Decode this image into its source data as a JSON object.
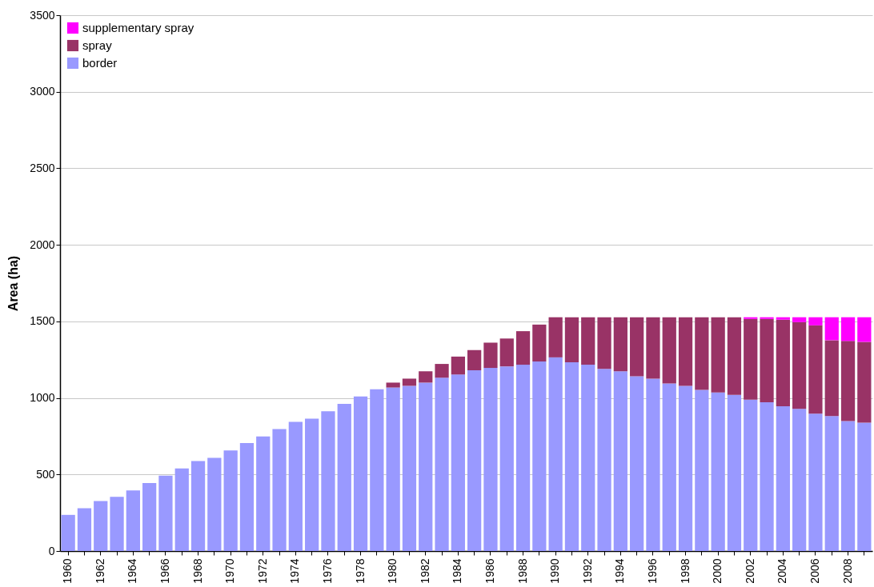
{
  "chart_data": {
    "type": "bar",
    "stacked": true,
    "ylabel": "Area (ha)",
    "categories": [
      "1960",
      null,
      "1962",
      null,
      "1964",
      null,
      "1966",
      null,
      "1968",
      null,
      "1970",
      null,
      "1972",
      null,
      "1974",
      null,
      "1976",
      null,
      "1978",
      null,
      "1980",
      null,
      "1982",
      null,
      "1984",
      null,
      "1986",
      null,
      "1988",
      null,
      "1990",
      null,
      "1992",
      null,
      "1994",
      null,
      "1996",
      null,
      "1998",
      null,
      "2000",
      null,
      "2002",
      null,
      "2004",
      null,
      "2006",
      null,
      "2008",
      null
    ],
    "series": [
      {
        "name": "border",
        "color": "#9999ff",
        "values": [
          236,
          279,
          327,
          354,
          396,
          444,
          492,
          540,
          588,
          609,
          657,
          705,
          748,
          796,
          844,
          865,
          913,
          961,
          1009,
          1057,
          1068,
          1079,
          1100,
          1132,
          1153,
          1180,
          1196,
          1206,
          1217,
          1238,
          1265,
          1233,
          1217,
          1190,
          1174,
          1142,
          1126,
          1094,
          1079,
          1052,
          1036,
          1020,
          988,
          972,
          945,
          929,
          897,
          881,
          849,
          838
        ]
      },
      {
        "name": "spray",
        "color": "#993366",
        "values": [
          0,
          0,
          0,
          0,
          0,
          0,
          0,
          0,
          0,
          0,
          0,
          0,
          0,
          0,
          0,
          0,
          0,
          0,
          0,
          0,
          32,
          47,
          74,
          90,
          117,
          133,
          165,
          182,
          219,
          241,
          262,
          294,
          310,
          337,
          353,
          385,
          401,
          433,
          448,
          475,
          491,
          507,
          528,
          544,
          566,
          566,
          577,
          496,
          523,
          528
        ]
      },
      {
        "name": "supplementary spray",
        "color": "#ff00ff",
        "values": [
          0,
          0,
          0,
          0,
          0,
          0,
          0,
          0,
          0,
          0,
          0,
          0,
          0,
          0,
          0,
          0,
          0,
          0,
          0,
          0,
          0,
          0,
          0,
          0,
          0,
          0,
          0,
          0,
          0,
          0,
          0,
          0,
          0,
          0,
          0,
          0,
          0,
          0,
          0,
          0,
          0,
          0,
          11,
          11,
          16,
          32,
          53,
          150,
          155,
          161
        ]
      }
    ],
    "ylim": [
      0,
      3500
    ],
    "yticks": [
      0,
      500,
      1000,
      1500,
      2000,
      2500,
      3000,
      3500
    ],
    "grid": "y",
    "legend": "top left"
  }
}
